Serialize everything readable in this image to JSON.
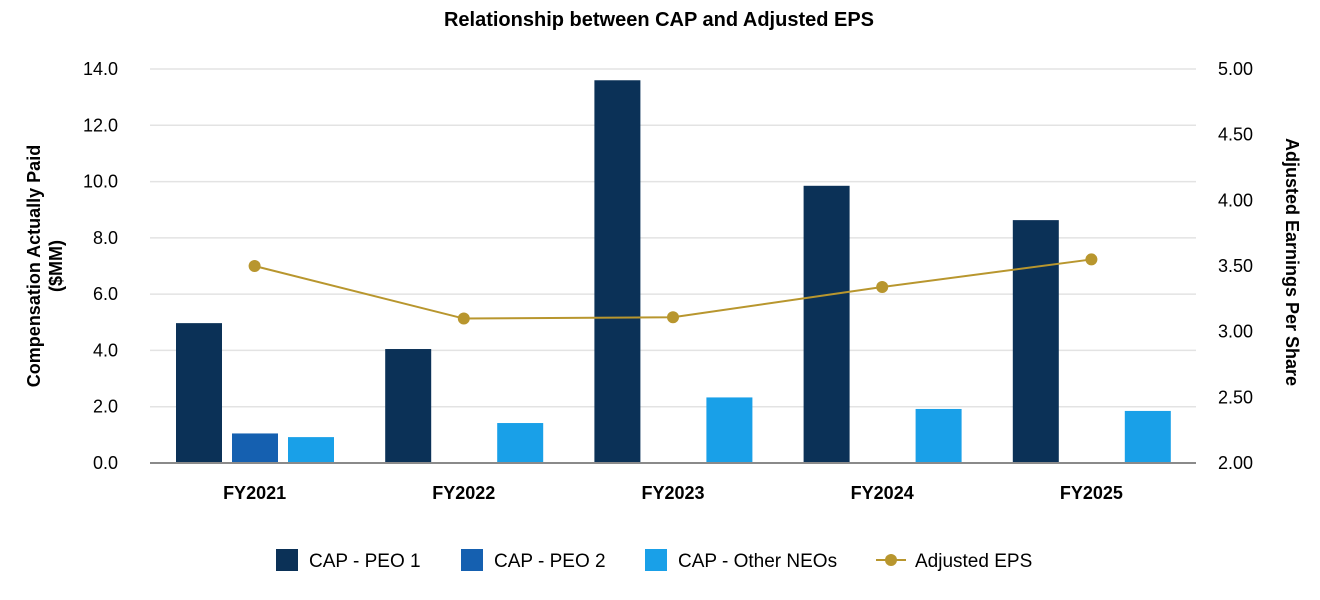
{
  "chart_data": {
    "type": "bar",
    "title": "Relationship between CAP and Adjusted EPS",
    "categories": [
      "FY2021",
      "FY2022",
      "FY2023",
      "FY2024",
      "FY2025"
    ],
    "ylabel": [
      "Compensation Actually Paid",
      "($MM)"
    ],
    "y2label": "Adjusted Earnings Per Share",
    "ylim": [
      0,
      14
    ],
    "y_ticks": [
      "0.0",
      "2.0",
      "4.0",
      "6.0",
      "8.0",
      "10.0",
      "12.0",
      "14.0"
    ],
    "y2lim": [
      2,
      5
    ],
    "y2_ticks": [
      "2.00",
      "2.50",
      "3.00",
      "3.50",
      "4.00",
      "4.50",
      "5.00"
    ],
    "series": [
      {
        "name": "CAP - PEO 1",
        "kind": "bar",
        "axis": "left",
        "color": "#0b3157",
        "values": [
          4.97,
          4.05,
          13.6,
          9.85,
          8.63
        ]
      },
      {
        "name": "CAP - PEO 2",
        "kind": "bar",
        "axis": "left",
        "color": "#1560b0",
        "values": [
          1.05,
          null,
          null,
          null,
          null
        ]
      },
      {
        "name": "CAP - Other NEOs",
        "kind": "bar",
        "axis": "left",
        "color": "#19a0e8",
        "values": [
          0.92,
          1.42,
          2.33,
          1.92,
          1.85
        ]
      },
      {
        "name": "Adjusted EPS",
        "kind": "line",
        "axis": "right",
        "color": "#b8962e",
        "values": [
          3.5,
          3.1,
          3.11,
          3.34,
          3.55
        ]
      }
    ],
    "grid": true,
    "legend_position": "bottom"
  }
}
